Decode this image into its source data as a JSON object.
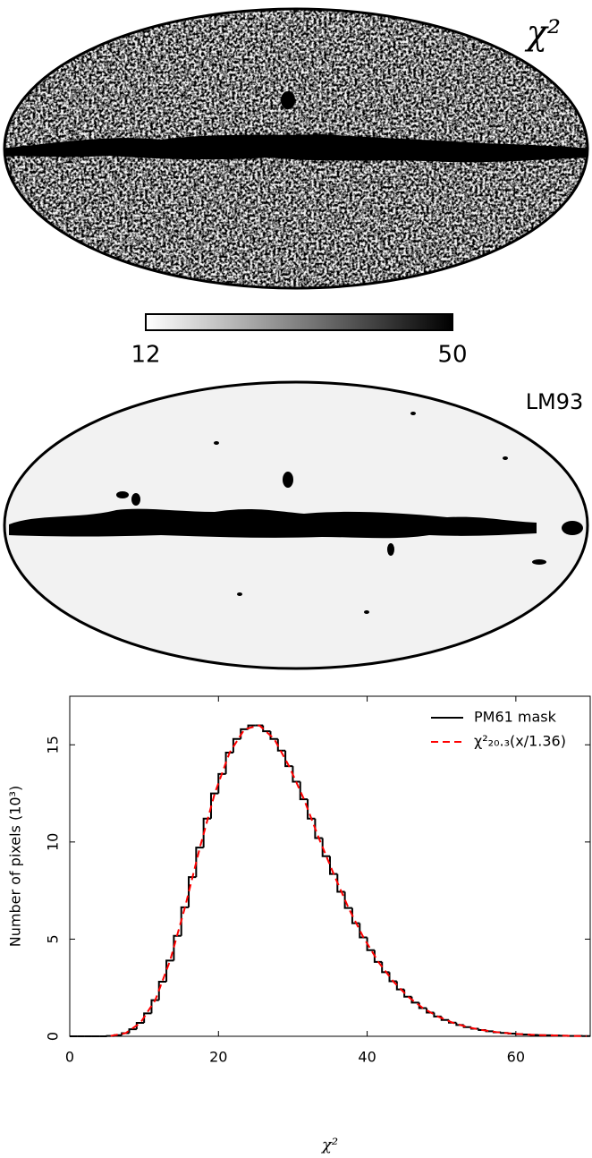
{
  "chart_data": [
    {
      "type": "map",
      "label": "χ²",
      "colorbar": {
        "lim": [
          12,
          50
        ],
        "ticks": [
          12,
          50
        ],
        "colors": [
          "#ffffff",
          "#000000"
        ]
      }
    },
    {
      "type": "map",
      "label": "LM93"
    },
    {
      "type": "histogram",
      "xlabel": "χ²",
      "ylabel": "Number of pixels (10³)",
      "bins": [
        0,
        1,
        2,
        3,
        4,
        5,
        6,
        7,
        8,
        9,
        10,
        11,
        12,
        13,
        14,
        15,
        16,
        17,
        18,
        19,
        20,
        21,
        22,
        23,
        24,
        25,
        26,
        27,
        28,
        29,
        30,
        31,
        32,
        33,
        34,
        35,
        36,
        37,
        38,
        39,
        40,
        41,
        42,
        43,
        44,
        45,
        46,
        47,
        48,
        49,
        50,
        51,
        52,
        53,
        54,
        55,
        56,
        57,
        58,
        59,
        60,
        61,
        62,
        63,
        64,
        65,
        66,
        67,
        68,
        69,
        70
      ],
      "series": [
        {
          "name": "PM61 mask",
          "color": "#000000",
          "values": [
            0,
            0,
            0,
            0,
            0,
            0.02,
            0.06,
            0.16,
            0.36,
            0.69,
            1.18,
            1.86,
            2.81,
            3.9,
            5.17,
            6.64,
            8.19,
            9.71,
            11.2,
            12.5,
            13.5,
            14.6,
            15.3,
            15.8,
            16.0,
            16.0,
            15.7,
            15.3,
            14.7,
            13.9,
            13.1,
            12.2,
            11.2,
            10.2,
            9.27,
            8.35,
            7.44,
            6.6,
            5.82,
            5.09,
            4.43,
            3.83,
            3.3,
            2.83,
            2.41,
            2.04,
            1.73,
            1.45,
            1.22,
            1.02,
            0.84,
            0.7,
            0.58,
            0.47,
            0.39,
            0.32,
            0.26,
            0.21,
            0.17,
            0.14,
            0.11,
            0.09,
            0.07,
            0.06,
            0.05,
            0.04,
            0.03,
            0.02,
            0.02,
            0.01
          ]
        },
        {
          "name": "χ²₂₀.₃(x/1.36)",
          "color": "#ff0000",
          "style": "dashed",
          "x": [
            5.5,
            7.5,
            9.5,
            11.5,
            13.5,
            15.5,
            17.5,
            19.5,
            21.5,
            23.5,
            25.5,
            27.5,
            29.5,
            31.5,
            33.5,
            35.5,
            37.5,
            39.5,
            41.5,
            43.5,
            45.5,
            47.5,
            49.5,
            51.5,
            53.5,
            55.5,
            57.5,
            59.5,
            61.5,
            63.5,
            65.5,
            67.5,
            69.5
          ],
          "values": [
            0.02,
            0.16,
            0.69,
            1.86,
            3.9,
            6.64,
            9.71,
            12.5,
            14.6,
            15.8,
            16.0,
            15.3,
            13.9,
            12.2,
            10.2,
            8.35,
            6.6,
            5.09,
            3.83,
            2.83,
            2.04,
            1.45,
            1.02,
            0.7,
            0.47,
            0.32,
            0.21,
            0.14,
            0.09,
            0.06,
            0.04,
            0.02,
            0.01
          ]
        }
      ],
      "xlim": [
        0,
        70
      ],
      "xticks": [
        0,
        20,
        40,
        60
      ],
      "ylim": [
        0,
        17.5
      ],
      "yticks": [
        0,
        5,
        10,
        15
      ],
      "legend": "upper right"
    }
  ]
}
